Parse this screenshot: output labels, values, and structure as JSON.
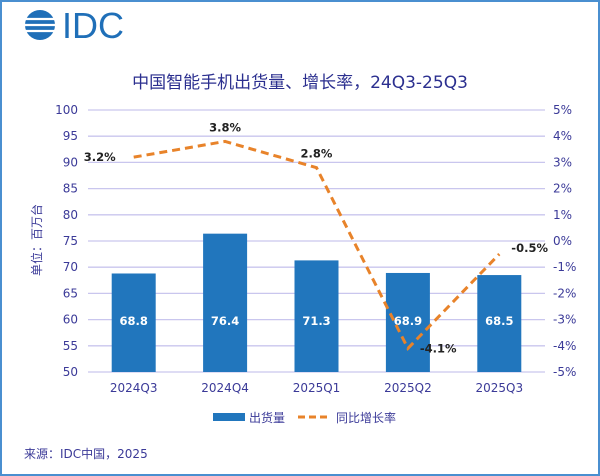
{
  "logo": {
    "text": "IDC",
    "color": "#1f6fb8"
  },
  "chart_data": {
    "type": "bar+line",
    "title": "中国智能手机出货量、增长率，24Q3-25Q3",
    "categories": [
      "2024Q3",
      "2024Q4",
      "2025Q1",
      "2025Q2",
      "2025Q3"
    ],
    "ylabel": "单位：百万台",
    "ylim": [
      50,
      100
    ],
    "yticks": [
      "50",
      "55",
      "60",
      "65",
      "70",
      "75",
      "80",
      "85",
      "90",
      "95",
      "100"
    ],
    "y2lim": [
      -5,
      5
    ],
    "y2ticks": [
      "-5%",
      "-4%",
      "-3%",
      "-2%",
      "-1%",
      "0%",
      "1%",
      "2%",
      "3%",
      "4%",
      "5%"
    ],
    "grid": true,
    "legend_position": "bottom",
    "series": [
      {
        "name": "出货量",
        "type": "bar",
        "axis": "left",
        "color": "#2176bd",
        "values": [
          68.8,
          76.4,
          71.3,
          68.9,
          68.5
        ],
        "labels": [
          "68.8",
          "76.4",
          "71.3",
          "68.9",
          "68.5"
        ]
      },
      {
        "name": "同比增长率",
        "type": "line",
        "style": "dashed",
        "axis": "right",
        "color": "#e8832a",
        "values": [
          3.2,
          3.8,
          2.8,
          -4.1,
          -0.5
        ],
        "labels": [
          "3.2%",
          "3.8%",
          "2.8%",
          "-4.1%",
          "-0.5%"
        ]
      }
    ]
  },
  "source": "来源：IDC中国，2025"
}
